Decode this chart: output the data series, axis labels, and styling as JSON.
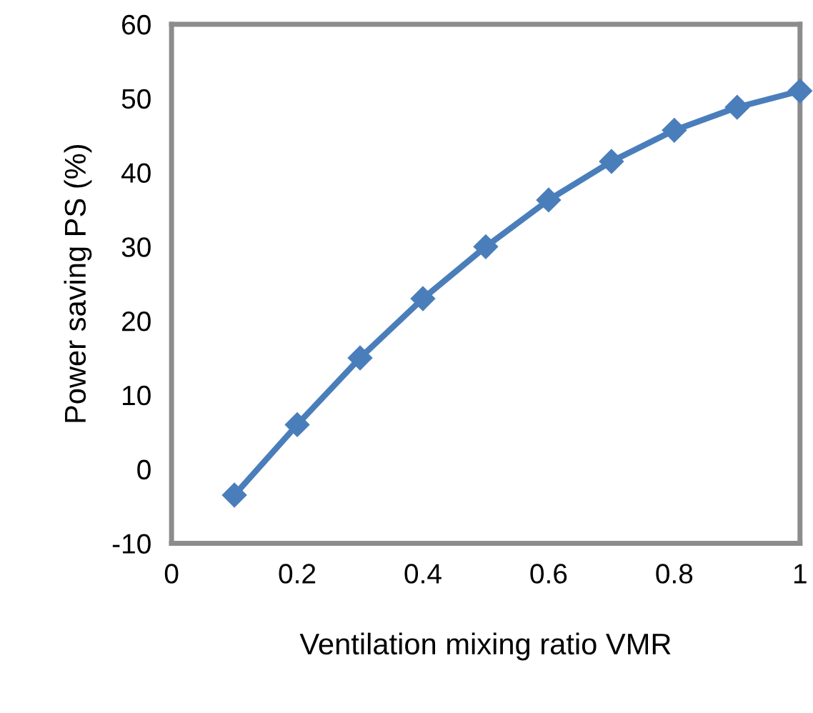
{
  "chart_data": {
    "type": "line",
    "xlabel": "Ventilation mixing ratio VMR",
    "ylabel": "Power saving PS (%)",
    "x": [
      0.1,
      0.2,
      0.3,
      0.4,
      0.5,
      0.6,
      0.7,
      0.8,
      0.9,
      1.0
    ],
    "series": [
      {
        "color": "#4a7ebb",
        "values": [
          -3.5,
          6,
          15,
          23,
          30,
          36.3,
          41.5,
          45.7,
          48.8,
          51
        ]
      }
    ],
    "xlim": [
      0,
      1
    ],
    "xticks": [
      0,
      0.2,
      0.4,
      0.6,
      0.8,
      1
    ],
    "ylim": [
      -10,
      60
    ],
    "yticks": [
      -10,
      0,
      10,
      20,
      30,
      40,
      50,
      60
    ],
    "marker": "diamond",
    "line_style": "solid",
    "grid": false,
    "legend": false
  }
}
